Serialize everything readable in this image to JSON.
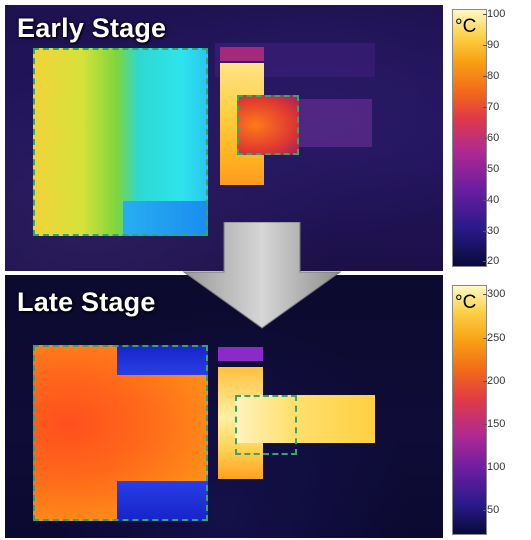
{
  "early_stage": {
    "label": "Early Stage"
  },
  "late_stage": {
    "label": "Late Stage"
  },
  "colorbar_early": {
    "unit": "°C",
    "ticks": [
      "100",
      "90",
      "80",
      "70",
      "60",
      "50",
      "40",
      "30",
      "20"
    ]
  },
  "colorbar_late": {
    "unit": "°C",
    "ticks": [
      "300",
      "250",
      "200",
      "150",
      "100",
      "50"
    ]
  },
  "colors": {
    "region_outline": "#2fa86a",
    "arrow": "#a8a8a8"
  }
}
